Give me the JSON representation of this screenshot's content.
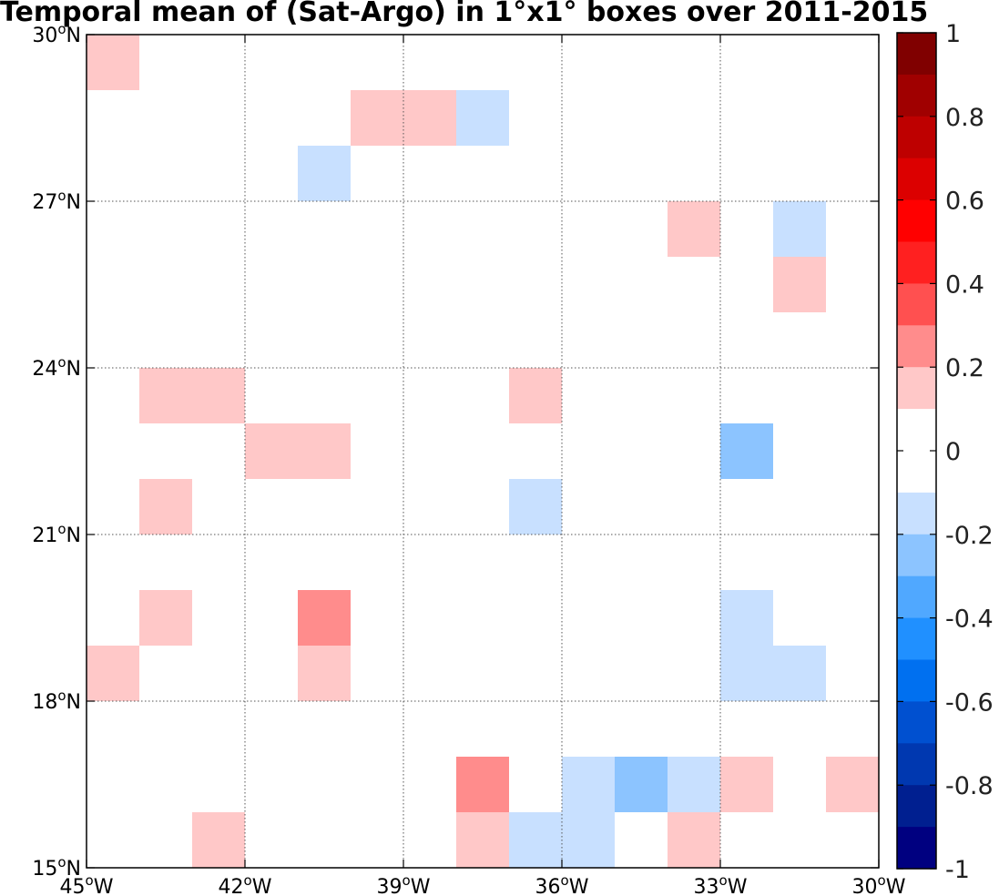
{
  "title": "Temporal mean of (Sat-Argo) in 1°x1° boxes over 2011-2015",
  "chart_data": {
    "type": "heatmap",
    "title": "Temporal mean of (Sat-Argo) in 1°x1° boxes over 2011-2015",
    "xlim": [
      -45,
      -30
    ],
    "ylim": [
      15,
      30
    ],
    "grid": true,
    "x_ticks": [
      {
        "value": -45,
        "label": "45",
        "suffix": "W"
      },
      {
        "value": -42,
        "label": "42",
        "suffix": "W"
      },
      {
        "value": -39,
        "label": "39",
        "suffix": "W"
      },
      {
        "value": -36,
        "label": "36",
        "suffix": "W"
      },
      {
        "value": -33,
        "label": "33",
        "suffix": "W"
      },
      {
        "value": -30,
        "label": "30",
        "suffix": "W"
      }
    ],
    "y_ticks": [
      {
        "value": 15,
        "label": "15",
        "suffix": "N"
      },
      {
        "value": 18,
        "label": "18",
        "suffix": "N"
      },
      {
        "value": 21,
        "label": "21",
        "suffix": "N"
      },
      {
        "value": 24,
        "label": "24",
        "suffix": "N"
      },
      {
        "value": 27,
        "label": "27",
        "suffix": "N"
      },
      {
        "value": 30,
        "label": "30",
        "suffix": "N"
      }
    ],
    "cells": [
      {
        "lon": -45,
        "lat": 29,
        "value": 0.15
      },
      {
        "lon": -41,
        "lat": 27,
        "value": -0.15
      },
      {
        "lon": -40,
        "lat": 28,
        "value": 0.15
      },
      {
        "lon": -39,
        "lat": 28,
        "value": 0.15
      },
      {
        "lon": -38,
        "lat": 28,
        "value": -0.15
      },
      {
        "lon": -34,
        "lat": 26,
        "value": 0.15
      },
      {
        "lon": -32,
        "lat": 26,
        "value": -0.15
      },
      {
        "lon": -32,
        "lat": 25,
        "value": 0.15
      },
      {
        "lon": -44,
        "lat": 23,
        "value": 0.15
      },
      {
        "lon": -43,
        "lat": 23,
        "value": 0.15
      },
      {
        "lon": -37,
        "lat": 23,
        "value": 0.15
      },
      {
        "lon": -42,
        "lat": 22,
        "value": 0.15
      },
      {
        "lon": -41,
        "lat": 22,
        "value": 0.15
      },
      {
        "lon": -33,
        "lat": 22,
        "value": -0.25
      },
      {
        "lon": -44,
        "lat": 21,
        "value": 0.15
      },
      {
        "lon": -37,
        "lat": 21,
        "value": -0.15
      },
      {
        "lon": -44,
        "lat": 19,
        "value": 0.15
      },
      {
        "lon": -41,
        "lat": 19,
        "value": 0.25
      },
      {
        "lon": -33,
        "lat": 19,
        "value": -0.15
      },
      {
        "lon": -45,
        "lat": 18,
        "value": 0.15
      },
      {
        "lon": -41,
        "lat": 18,
        "value": 0.15
      },
      {
        "lon": -33,
        "lat": 18,
        "value": -0.15
      },
      {
        "lon": -32,
        "lat": 18,
        "value": -0.15
      },
      {
        "lon": -38,
        "lat": 16,
        "value": 0.25
      },
      {
        "lon": -36,
        "lat": 16,
        "value": -0.15
      },
      {
        "lon": -35,
        "lat": 16,
        "value": -0.25
      },
      {
        "lon": -34,
        "lat": 16,
        "value": -0.15
      },
      {
        "lon": -33,
        "lat": 16,
        "value": 0.15
      },
      {
        "lon": -31,
        "lat": 16,
        "value": 0.15
      },
      {
        "lon": -43,
        "lat": 15,
        "value": 0.15
      },
      {
        "lon": -38,
        "lat": 15,
        "value": 0.15
      },
      {
        "lon": -37,
        "lat": 15,
        "value": -0.15
      },
      {
        "lon": -36,
        "lat": 15,
        "value": -0.15
      },
      {
        "lon": -34,
        "lat": 15,
        "value": 0.15
      }
    ],
    "colorbar": {
      "range": [
        -1,
        1
      ],
      "ticks": [
        {
          "value": 1,
          "label": "1"
        },
        {
          "value": 0.8,
          "label": "0.8"
        },
        {
          "value": 0.6,
          "label": "0.6"
        },
        {
          "value": 0.4,
          "label": "0.4"
        },
        {
          "value": 0.2,
          "label": "0.2"
        },
        {
          "value": 0,
          "label": "0"
        },
        {
          "value": -0.2,
          "label": "-0.2"
        },
        {
          "value": -0.4,
          "label": "-0.4"
        },
        {
          "value": -0.6,
          "label": "-0.6"
        },
        {
          "value": -0.8,
          "label": "-0.8"
        },
        {
          "value": -1,
          "label": "-1"
        }
      ],
      "colors": [
        "#800000",
        "#a00000",
        "#be0000",
        "#dc0000",
        "#ff0000",
        "#ff2020",
        "#ff5050",
        "#ff8c8c",
        "#ffc8c8",
        "#ffffff",
        "#ffffff",
        "#c8e0ff",
        "#8cc4ff",
        "#50a8ff",
        "#2090ff",
        "#0070f0",
        "#0050d0",
        "#0038b0",
        "#001f90",
        "#000080"
      ]
    }
  }
}
